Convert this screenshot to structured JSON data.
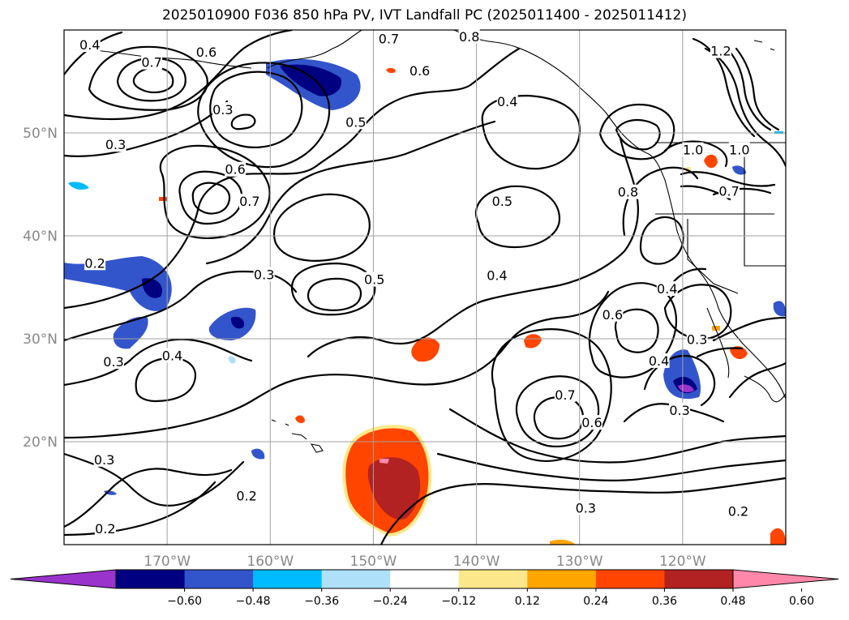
{
  "title": "2025010900 F036 850 hPa PV, IVT Landfall PC (2025011400 - 2025011412)",
  "map": {
    "lon_range": [
      -180,
      -110
    ],
    "lat_range": [
      10,
      60
    ],
    "lat_ticks": [
      "50°N",
      "40°N",
      "30°N",
      "20°N"
    ],
    "lat_values": [
      50,
      40,
      30,
      20
    ],
    "lon_ticks": [
      "170°W",
      "160°W",
      "150°W",
      "140°W",
      "130°W",
      "120°W"
    ],
    "lon_values": [
      -170,
      -160,
      -150,
      -140,
      -130,
      -120
    ],
    "grid": true
  },
  "colorbar": {
    "extend": "both",
    "colors": [
      "#9933cc",
      "#000080",
      "#3355cc",
      "#00bbff",
      "#aee0fa",
      "#ffffff",
      "#fce88a",
      "#ffa500",
      "#ff4500",
      "#b22222",
      "#ff88aa"
    ],
    "tick_labels": [
      "−0.60",
      "−0.48",
      "−0.36",
      "−0.24",
      "−0.12",
      "0.12",
      "0.24",
      "0.36",
      "0.48",
      "0.60"
    ]
  },
  "contour_labels": [
    {
      "text": "0.4",
      "lon": -177.5,
      "lat": 58.5
    },
    {
      "text": "0.7",
      "lon": -171.5,
      "lat": 56.8
    },
    {
      "text": "0.6",
      "lon": -166.2,
      "lat": 57.8
    },
    {
      "text": "0.7",
      "lon": -148.5,
      "lat": 59.1
    },
    {
      "text": "0.8",
      "lon": -140.7,
      "lat": 59.3
    },
    {
      "text": "0.6",
      "lon": -145.5,
      "lat": 56.0
    },
    {
      "text": "0.3",
      "lon": -164.6,
      "lat": 52.2
    },
    {
      "text": "0.5",
      "lon": -151.7,
      "lat": 51.0
    },
    {
      "text": "0.4",
      "lon": -137.0,
      "lat": 53.0
    },
    {
      "text": "1.2",
      "lon": -116.3,
      "lat": 57.9
    },
    {
      "text": "0.3",
      "lon": -175.0,
      "lat": 48.8
    },
    {
      "text": "0.6",
      "lon": -163.4,
      "lat": 46.4
    },
    {
      "text": "0.7",
      "lon": -162.0,
      "lat": 43.3
    },
    {
      "text": "0.5",
      "lon": -137.5,
      "lat": 43.3
    },
    {
      "text": "1.0",
      "lon": -119.0,
      "lat": 48.3
    },
    {
      "text": "1.0",
      "lon": -114.5,
      "lat": 48.3
    },
    {
      "text": "0.7",
      "lon": -115.5,
      "lat": 44.3
    },
    {
      "text": "0.8",
      "lon": -125.3,
      "lat": 44.2
    },
    {
      "text": "0.2",
      "lon": -177.0,
      "lat": 37.3
    },
    {
      "text": "0.3",
      "lon": -160.6,
      "lat": 36.2
    },
    {
      "text": "0.5",
      "lon": -149.9,
      "lat": 35.7
    },
    {
      "text": "0.4",
      "lon": -138.0,
      "lat": 36.1
    },
    {
      "text": "0.4",
      "lon": -121.5,
      "lat": 34.8
    },
    {
      "text": "0.6",
      "lon": -126.8,
      "lat": 32.3
    },
    {
      "text": "0.3",
      "lon": -175.2,
      "lat": 27.7
    },
    {
      "text": "0.4",
      "lon": -169.5,
      "lat": 28.3
    },
    {
      "text": "0.4",
      "lon": -122.3,
      "lat": 27.8
    },
    {
      "text": "0.3",
      "lon": -118.6,
      "lat": 29.9
    },
    {
      "text": "0.7",
      "lon": -131.4,
      "lat": 24.5
    },
    {
      "text": "0.6",
      "lon": -128.8,
      "lat": 21.8
    },
    {
      "text": "0.3",
      "lon": -120.3,
      "lat": 23.0
    },
    {
      "text": "0.3",
      "lon": -176.1,
      "lat": 18.2
    },
    {
      "text": "0.2",
      "lon": -162.3,
      "lat": 14.7
    },
    {
      "text": "0.3",
      "lon": -129.4,
      "lat": 13.5
    },
    {
      "text": "0.2",
      "lon": -114.6,
      "lat": 13.2
    },
    {
      "text": "0.2",
      "lon": -176.0,
      "lat": 11.5
    }
  ]
}
